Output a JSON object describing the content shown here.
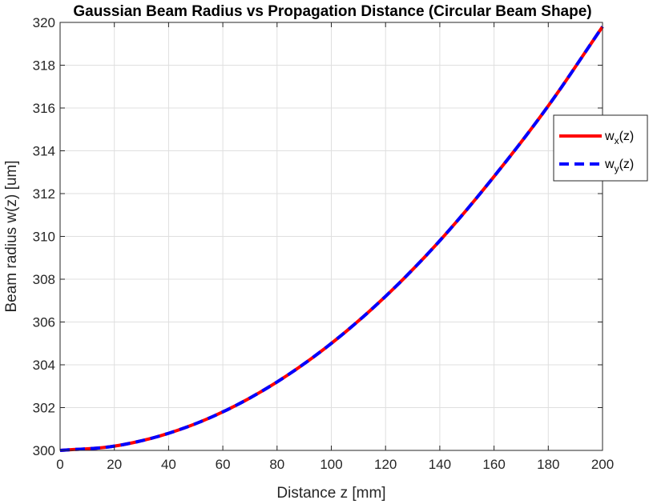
{
  "chart_data": {
    "type": "line",
    "title": "Gaussian Beam Radius vs Propagation Distance (Circular Beam Shape)",
    "xlabel": "Distance z [mm]",
    "ylabel": "Beam radius w(z) [um]",
    "xlim": [
      0,
      200
    ],
    "ylim": [
      300,
      320
    ],
    "xticks": [
      0,
      20,
      40,
      60,
      80,
      100,
      120,
      140,
      160,
      180,
      200
    ],
    "yticks": [
      300,
      302,
      304,
      306,
      308,
      310,
      312,
      314,
      316,
      318,
      320
    ],
    "grid": true,
    "legend_position": "right",
    "x": [
      0,
      20,
      40,
      60,
      80,
      100,
      120,
      140,
      160,
      180,
      200
    ],
    "series": [
      {
        "name_base": "w",
        "name_sub": "x",
        "name_suffix": "(z)",
        "color": "#ff0000",
        "style": "solid",
        "values": [
          300.0,
          300.2,
          300.8,
          301.8,
          303.2,
          305.0,
          307.2,
          309.8,
          312.8,
          316.1,
          319.8
        ]
      },
      {
        "name_base": "w",
        "name_sub": "y",
        "name_suffix": "(z)",
        "color": "#0000ff",
        "style": "dashed",
        "values": [
          300.0,
          300.2,
          300.8,
          301.8,
          303.2,
          305.0,
          307.2,
          309.8,
          312.8,
          316.1,
          319.8
        ]
      }
    ]
  }
}
